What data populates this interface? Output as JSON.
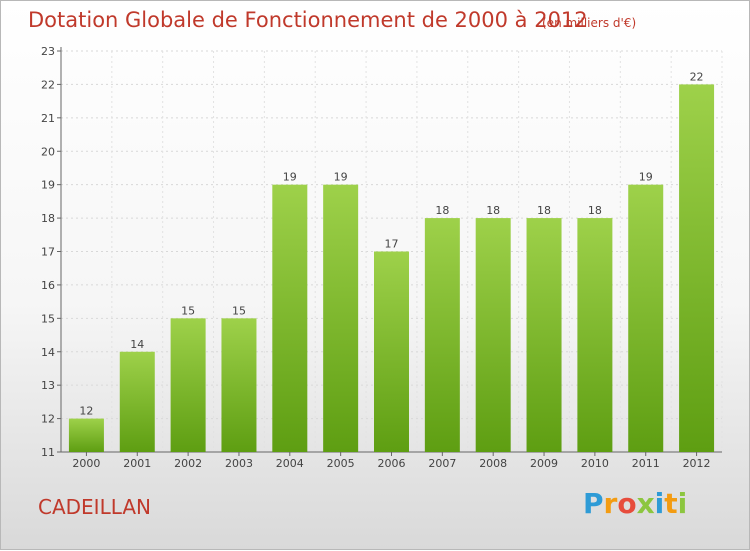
{
  "header": {
    "title": "Dotation Globale de Fonctionnement de 2000 à 2012",
    "unit_note": "(en milliers d'€)"
  },
  "footer": {
    "town": "CADEILLAN",
    "logo": [
      "P",
      "r",
      "o",
      "x",
      "i",
      "t",
      "i"
    ]
  },
  "colors": {
    "bar_top": "#9ed14a",
    "bar_bottom": "#5e9e12",
    "title": "#c0392b"
  },
  "chart_data": {
    "type": "bar",
    "categories": [
      "2000",
      "2001",
      "2002",
      "2003",
      "2004",
      "2005",
      "2006",
      "2007",
      "2008",
      "2009",
      "2010",
      "2011",
      "2012"
    ],
    "values": [
      12,
      14,
      15,
      15,
      19,
      19,
      17,
      18,
      18,
      18,
      18,
      19,
      22
    ],
    "title": "Dotation Globale de Fonctionnement de 2000 à 2012",
    "subtitle": "(en milliers d'€)",
    "ylim": [
      11,
      23
    ],
    "yticks": [
      11,
      12,
      13,
      14,
      15,
      16,
      17,
      18,
      19,
      20,
      21,
      22,
      23
    ],
    "grid": true,
    "data_labels": true
  }
}
